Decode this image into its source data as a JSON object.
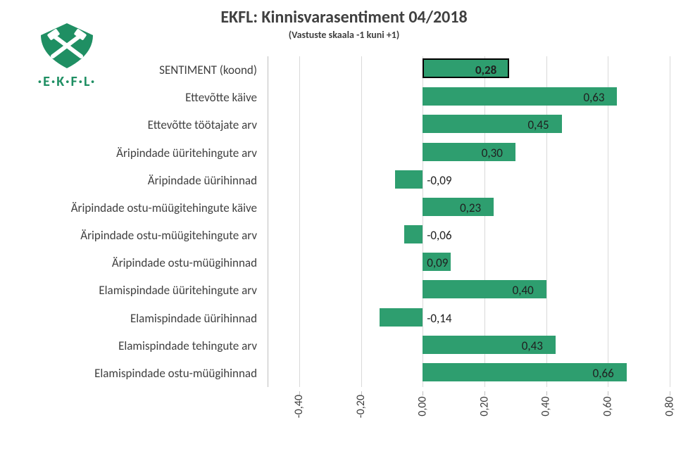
{
  "title": "EKFL: Kinnisvarasentiment 04/2018",
  "subtitle": "(Vastuste skaala -1 kuni +1)",
  "logo": {
    "text": "·E·K·F·L·",
    "color": "#1f8f63"
  },
  "chart": {
    "type": "bar",
    "orientation": "horizontal",
    "xlim": [
      -0.5,
      0.8
    ],
    "xticks": [
      -0.4,
      -0.2,
      0.0,
      0.2,
      0.4,
      0.6,
      0.8
    ],
    "xtick_labels": [
      "-0,40",
      "-0,20",
      "0,00",
      "0,20",
      "0,40",
      "0,60",
      "0,80"
    ],
    "bar_color": "#2e9e6f",
    "grid_color": "#d9d9d9",
    "axis_color": "#bfbfbf",
    "background_color": "#ffffff",
    "highlight_border_color": "#000000",
    "label_fontsize": 17,
    "tick_fontsize": 16,
    "categories": [
      {
        "label": "SENTIMENT (koond)",
        "value": 0.28,
        "value_label": "0,28",
        "highlight": true
      },
      {
        "label": "Ettevõtte käive",
        "value": 0.63,
        "value_label": "0,63"
      },
      {
        "label": "Ettevõtte töötajate arv",
        "value": 0.45,
        "value_label": "0,45"
      },
      {
        "label": "Äripindade üüritehingute arv",
        "value": 0.3,
        "value_label": "0,30"
      },
      {
        "label": "Äripindade üürihinnad",
        "value": -0.09,
        "value_label": "-0,09"
      },
      {
        "label": "Äripindade ostu-müügitehingute käive",
        "value": 0.23,
        "value_label": "0,23"
      },
      {
        "label": "Äripindade ostu-müügitehingute arv",
        "value": -0.06,
        "value_label": "-0,06"
      },
      {
        "label": "Äripindade ostu-müügihinnad",
        "value": 0.09,
        "value_label": "0,09"
      },
      {
        "label": "Elamispindade üüritehingute arv",
        "value": 0.4,
        "value_label": "0,40"
      },
      {
        "label": "Elamispindade üürihinnad",
        "value": -0.14,
        "value_label": "-0,14"
      },
      {
        "label": "Elamispindade tehingute arv",
        "value": 0.43,
        "value_label": "0,43"
      },
      {
        "label": "Elamispindade ostu-müügihinnad",
        "value": 0.66,
        "value_label": "0,66"
      }
    ]
  }
}
